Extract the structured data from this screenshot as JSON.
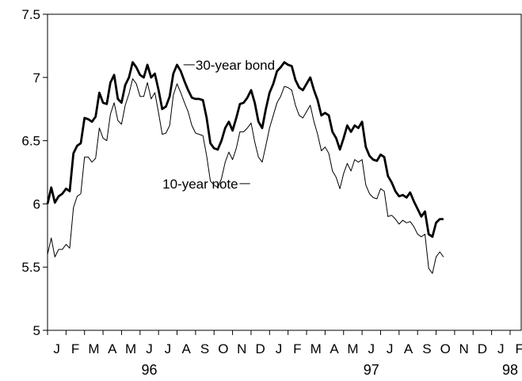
{
  "chart_data": {
    "type": "line",
    "title": "",
    "xlabel": "",
    "ylabel": "",
    "ylim": [
      5,
      7.5
    ],
    "yticks": [
      "7.5",
      "7",
      "6.5",
      "6",
      "5.5",
      "5"
    ],
    "grid": false,
    "x_months": [
      "J",
      "F",
      "M",
      "A",
      "M",
      "J",
      "J",
      "A",
      "S",
      "O",
      "N",
      "D",
      "J",
      "F",
      "M",
      "A",
      "M",
      "J",
      "J",
      "A",
      "S",
      "O",
      "N",
      "D",
      "J",
      "F"
    ],
    "x_years": [
      {
        "label": "96",
        "month_index": 5.5
      },
      {
        "label": "97",
        "month_index": 17.5
      },
      {
        "label": "98",
        "month_index": 25
      }
    ],
    "x_start_month_index": 0,
    "x_end_month_index": 25.6,
    "series": [
      {
        "name": "30-year bond",
        "label": "30-year bond",
        "stroke": "#000000",
        "weight": "bold",
        "points": [
          [
            0,
            6.0
          ],
          [
            0.2,
            6.13
          ],
          [
            0.4,
            6.01
          ],
          [
            0.6,
            6.06
          ],
          [
            0.8,
            6.08
          ],
          [
            1.0,
            6.12
          ],
          [
            1.2,
            6.1
          ],
          [
            1.4,
            6.4
          ],
          [
            1.6,
            6.46
          ],
          [
            1.8,
            6.48
          ],
          [
            2.0,
            6.68
          ],
          [
            2.2,
            6.67
          ],
          [
            2.4,
            6.65
          ],
          [
            2.6,
            6.69
          ],
          [
            2.8,
            6.88
          ],
          [
            3.0,
            6.8
          ],
          [
            3.2,
            6.79
          ],
          [
            3.4,
            6.96
          ],
          [
            3.6,
            7.02
          ],
          [
            3.8,
            6.83
          ],
          [
            4.0,
            6.8
          ],
          [
            4.2,
            6.94
          ],
          [
            4.4,
            7.0
          ],
          [
            4.6,
            7.12
          ],
          [
            4.8,
            7.08
          ],
          [
            5.0,
            7.02
          ],
          [
            5.2,
            7.0
          ],
          [
            5.4,
            7.1
          ],
          [
            5.6,
            7.0
          ],
          [
            5.8,
            7.03
          ],
          [
            6.0,
            6.9
          ],
          [
            6.2,
            6.75
          ],
          [
            6.4,
            6.77
          ],
          [
            6.6,
            6.85
          ],
          [
            6.8,
            7.03
          ],
          [
            7.0,
            7.1
          ],
          [
            7.2,
            7.05
          ],
          [
            7.4,
            6.97
          ],
          [
            7.6,
            6.9
          ],
          [
            7.8,
            6.84
          ],
          [
            8.0,
            6.83
          ],
          [
            8.2,
            6.83
          ],
          [
            8.4,
            6.82
          ],
          [
            8.6,
            6.68
          ],
          [
            8.8,
            6.48
          ],
          [
            9.0,
            6.44
          ],
          [
            9.2,
            6.43
          ],
          [
            9.4,
            6.5
          ],
          [
            9.6,
            6.6
          ],
          [
            9.8,
            6.65
          ],
          [
            10.0,
            6.58
          ],
          [
            10.2,
            6.68
          ],
          [
            10.4,
            6.79
          ],
          [
            10.6,
            6.8
          ],
          [
            10.8,
            6.84
          ],
          [
            11.0,
            6.9
          ],
          [
            11.2,
            6.8
          ],
          [
            11.4,
            6.65
          ],
          [
            11.6,
            6.6
          ],
          [
            11.8,
            6.75
          ],
          [
            12.0,
            6.88
          ],
          [
            12.2,
            6.95
          ],
          [
            12.4,
            7.05
          ],
          [
            12.6,
            7.08
          ],
          [
            12.8,
            7.12
          ],
          [
            13.0,
            7.1
          ],
          [
            13.2,
            7.09
          ],
          [
            13.4,
            6.98
          ],
          [
            13.6,
            6.92
          ],
          [
            13.8,
            6.9
          ],
          [
            14.0,
            6.95
          ],
          [
            14.2,
            7.0
          ],
          [
            14.4,
            6.9
          ],
          [
            14.6,
            6.82
          ],
          [
            14.8,
            6.7
          ],
          [
            15.0,
            6.72
          ],
          [
            15.2,
            6.7
          ],
          [
            15.4,
            6.57
          ],
          [
            15.6,
            6.52
          ],
          [
            15.8,
            6.43
          ],
          [
            16.0,
            6.52
          ],
          [
            16.2,
            6.62
          ],
          [
            16.4,
            6.57
          ],
          [
            16.6,
            6.62
          ],
          [
            16.8,
            6.6
          ],
          [
            17.0,
            6.65
          ],
          [
            17.2,
            6.45
          ],
          [
            17.4,
            6.38
          ],
          [
            17.6,
            6.35
          ],
          [
            17.8,
            6.34
          ],
          [
            18.0,
            6.39
          ],
          [
            18.2,
            6.37
          ],
          [
            18.4,
            6.22
          ],
          [
            18.6,
            6.17
          ],
          [
            18.8,
            6.1
          ],
          [
            19.0,
            6.06
          ],
          [
            19.2,
            6.07
          ],
          [
            19.4,
            6.05
          ],
          [
            19.6,
            6.09
          ],
          [
            19.8,
            6.02
          ],
          [
            20.0,
            5.96
          ],
          [
            20.2,
            5.9
          ],
          [
            20.4,
            5.94
          ],
          [
            20.6,
            5.76
          ],
          [
            20.8,
            5.74
          ],
          [
            21.0,
            5.85
          ],
          [
            21.2,
            5.88
          ],
          [
            21.4,
            5.88
          ]
        ]
      },
      {
        "name": "10-year note",
        "label": "10-year note",
        "stroke": "#000000",
        "weight": "thin",
        "points": [
          [
            0,
            5.6
          ],
          [
            0.2,
            5.73
          ],
          [
            0.4,
            5.58
          ],
          [
            0.6,
            5.64
          ],
          [
            0.8,
            5.64
          ],
          [
            1.0,
            5.68
          ],
          [
            1.2,
            5.65
          ],
          [
            1.4,
            5.97
          ],
          [
            1.6,
            6.06
          ],
          [
            1.8,
            6.08
          ],
          [
            2.0,
            6.37
          ],
          [
            2.2,
            6.37
          ],
          [
            2.4,
            6.33
          ],
          [
            2.6,
            6.36
          ],
          [
            2.8,
            6.6
          ],
          [
            3.0,
            6.52
          ],
          [
            3.2,
            6.5
          ],
          [
            3.4,
            6.71
          ],
          [
            3.6,
            6.8
          ],
          [
            3.8,
            6.66
          ],
          [
            4.0,
            6.63
          ],
          [
            4.2,
            6.78
          ],
          [
            4.4,
            6.87
          ],
          [
            4.6,
            6.99
          ],
          [
            4.8,
            6.95
          ],
          [
            5.0,
            6.85
          ],
          [
            5.2,
            6.85
          ],
          [
            5.4,
            6.96
          ],
          [
            5.6,
            6.83
          ],
          [
            5.8,
            6.88
          ],
          [
            6.0,
            6.72
          ],
          [
            6.2,
            6.55
          ],
          [
            6.4,
            6.56
          ],
          [
            6.6,
            6.62
          ],
          [
            6.8,
            6.86
          ],
          [
            7.0,
            6.95
          ],
          [
            7.2,
            6.88
          ],
          [
            7.4,
            6.8
          ],
          [
            7.6,
            6.73
          ],
          [
            7.8,
            6.62
          ],
          [
            8.0,
            6.56
          ],
          [
            8.2,
            6.55
          ],
          [
            8.4,
            6.54
          ],
          [
            8.6,
            6.38
          ],
          [
            8.8,
            6.18
          ],
          [
            9.0,
            6.15
          ],
          [
            9.2,
            6.13
          ],
          [
            9.4,
            6.2
          ],
          [
            9.6,
            6.33
          ],
          [
            9.8,
            6.41
          ],
          [
            10.0,
            6.35
          ],
          [
            10.2,
            6.44
          ],
          [
            10.4,
            6.57
          ],
          [
            10.6,
            6.57
          ],
          [
            10.8,
            6.6
          ],
          [
            11.0,
            6.64
          ],
          [
            11.2,
            6.49
          ],
          [
            11.4,
            6.37
          ],
          [
            11.6,
            6.33
          ],
          [
            11.8,
            6.46
          ],
          [
            12.0,
            6.6
          ],
          [
            12.2,
            6.7
          ],
          [
            12.4,
            6.8
          ],
          [
            12.6,
            6.85
          ],
          [
            12.8,
            6.93
          ],
          [
            13.0,
            6.92
          ],
          [
            13.2,
            6.9
          ],
          [
            13.4,
            6.78
          ],
          [
            13.6,
            6.7
          ],
          [
            13.8,
            6.68
          ],
          [
            14.0,
            6.73
          ],
          [
            14.2,
            6.78
          ],
          [
            14.4,
            6.65
          ],
          [
            14.6,
            6.55
          ],
          [
            14.8,
            6.42
          ],
          [
            15.0,
            6.45
          ],
          [
            15.2,
            6.4
          ],
          [
            15.4,
            6.26
          ],
          [
            15.6,
            6.21
          ],
          [
            15.8,
            6.12
          ],
          [
            16.0,
            6.24
          ],
          [
            16.2,
            6.32
          ],
          [
            16.4,
            6.26
          ],
          [
            16.6,
            6.35
          ],
          [
            16.8,
            6.33
          ],
          [
            17.0,
            6.35
          ],
          [
            17.2,
            6.15
          ],
          [
            17.4,
            6.08
          ],
          [
            17.6,
            6.05
          ],
          [
            17.8,
            6.04
          ],
          [
            18.0,
            6.12
          ],
          [
            18.2,
            6.1
          ],
          [
            18.4,
            5.9
          ],
          [
            18.6,
            5.91
          ],
          [
            18.8,
            5.88
          ],
          [
            19.0,
            5.84
          ],
          [
            19.2,
            5.87
          ],
          [
            19.4,
            5.85
          ],
          [
            19.6,
            5.86
          ],
          [
            19.8,
            5.82
          ],
          [
            20.0,
            5.76
          ],
          [
            20.2,
            5.74
          ],
          [
            20.4,
            5.76
          ],
          [
            20.6,
            5.49
          ],
          [
            20.8,
            5.45
          ],
          [
            21.0,
            5.58
          ],
          [
            21.2,
            5.62
          ],
          [
            21.4,
            5.58
          ]
        ]
      }
    ]
  }
}
